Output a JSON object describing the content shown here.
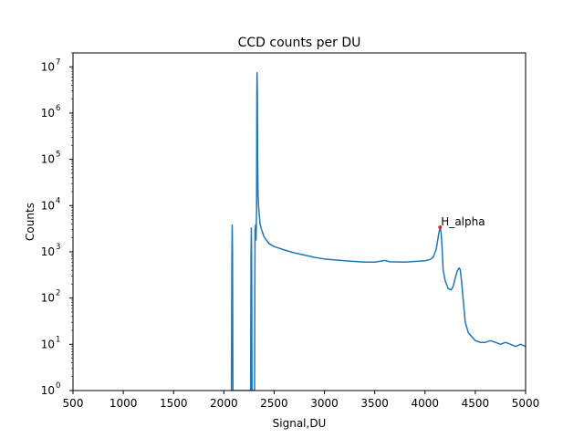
{
  "chart_data": {
    "type": "line",
    "title": "CCD counts per DU",
    "xlabel": "Signal,DU",
    "ylabel": "Counts",
    "xlim": [
      500,
      5000
    ],
    "ylim": [
      1,
      20000000
    ],
    "yscale": "log",
    "grid": false,
    "x_ticks": [
      "500",
      "1000",
      "1500",
      "2000",
      "2500",
      "3000",
      "3500",
      "4000",
      "4500",
      "5000"
    ],
    "x_tick_values": [
      500,
      1000,
      1500,
      2000,
      2500,
      3000,
      3500,
      4000,
      4500,
      5000
    ],
    "y_tick_exponents": [
      "0",
      "1",
      "2",
      "3",
      "4",
      "5",
      "6",
      "7"
    ],
    "series": [
      {
        "color": "#1f77b4",
        "x": [
          2075,
          2080,
          2083,
          2086,
          2090,
          2266,
          2270,
          2273,
          2276,
          2280,
          2300,
          2305,
          2310,
          2315,
          2320,
          2325,
          2328,
          2330,
          2333,
          2336,
          2340,
          2345,
          2350,
          2360,
          2375,
          2400,
          2450,
          2500,
          2600,
          2700,
          2800,
          2900,
          3000,
          3200,
          3400,
          3500,
          3600,
          3650,
          3800,
          4000,
          4050,
          4080,
          4110,
          4140,
          4150,
          4160,
          4170,
          4180,
          4200,
          4230,
          4260,
          4280,
          4300,
          4320,
          4340,
          4350,
          4360,
          4380,
          4400,
          4430,
          4460,
          4500,
          4550,
          4600,
          4650,
          4700,
          4750,
          4800,
          4850,
          4900,
          4950,
          5000
        ],
        "y": [
          1,
          1000,
          3800,
          1000,
          1,
          1,
          800,
          3300,
          800,
          1,
          1,
          1,
          3000,
          3800,
          1800,
          8000,
          3000000,
          7500000,
          3000000,
          100000,
          16000,
          10000,
          7000,
          4000,
          3000,
          2100,
          1500,
          1300,
          1100,
          950,
          850,
          760,
          700,
          640,
          600,
          600,
          650,
          610,
          600,
          640,
          680,
          760,
          1100,
          2700,
          3400,
          2600,
          1200,
          400,
          240,
          160,
          150,
          180,
          270,
          380,
          450,
          410,
          270,
          90,
          30,
          18,
          15,
          12,
          11,
          11,
          12,
          11,
          10,
          11,
          10,
          9,
          10,
          9
        ]
      }
    ],
    "annotations": [
      {
        "text": "H_alpha",
        "x": 4150,
        "y": 3400
      }
    ]
  }
}
